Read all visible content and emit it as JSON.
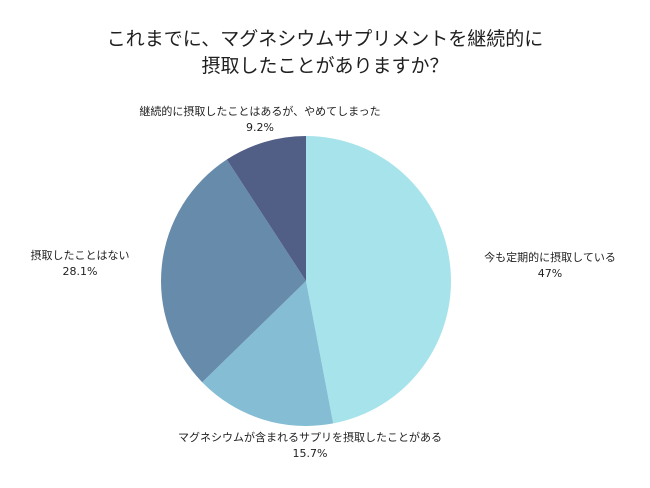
{
  "chart_data": {
    "type": "pie",
    "title_lines": [
      "これまでに、マグネシウムサプリメントを継続的に",
      "摂取したことがありますか？"
    ],
    "slices": [
      {
        "label": "今も定期的に摂取している",
        "value": 47,
        "value_text": "47%",
        "color": "#a6e3ea"
      },
      {
        "label": "マグネシウムが含まれるサプリを摂取したことがある",
        "value": 15.7,
        "value_text": "15.7%",
        "color": "#84bdd4"
      },
      {
        "label": "摂取したことはない",
        "value": 28.1,
        "value_text": "28.1%",
        "color": "#668bab"
      },
      {
        "label": "継続的に摂取したことはあるが、やめてしまった",
        "value": 9.2,
        "value_text": "9.2%",
        "color": "#515e86"
      }
    ]
  }
}
